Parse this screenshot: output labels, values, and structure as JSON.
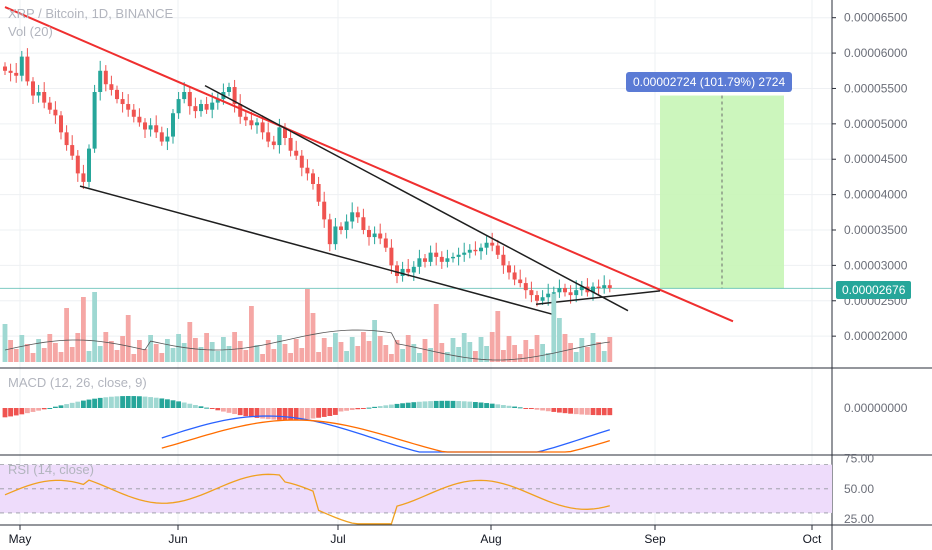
{
  "header": {
    "symbol": "XRP / Bitcoin, 1D, BINANCE",
    "volume_label": "Vol (20)"
  },
  "indicators": {
    "macd_label": "MACD (12, 26, close, 9)",
    "rsi_label": "RSI (14, close)"
  },
  "current_price_tag": "0.00002676",
  "measure_label": "0.00002724 (101.79%) 2724",
  "colors": {
    "bull": "#26a69a",
    "bear": "#ef5350",
    "bull_vol": "#9fd8d2",
    "bear_vol": "#f5a7a5",
    "trendline_red": "#ef2f2f",
    "trendline_black": "#1f1f1f",
    "measure_fill": "#c6f5b6",
    "rsi_band": "#eedcfb",
    "macd_line": "#2962ff",
    "signal_line": "#ff6d00",
    "rsi_line": "#f0a020"
  },
  "chart_data": [
    {
      "type": "candlestick",
      "yaxis_ticks": [
        "0.00006500",
        "0.00006000",
        "0.00005500",
        "0.00005000",
        "0.00004500",
        "0.00004000",
        "0.00003500",
        "0.00003000",
        "0.00002500",
        "0.00002000"
      ],
      "ylim": [
        1.55e-05,
        6.75e-05
      ],
      "xaxis_ticks": [
        "May",
        "Jun",
        "Jul",
        "Aug",
        "Sep",
        "Oct"
      ],
      "series_approx_close": [
        5.75e-05,
        5.72e-05,
        5.68e-05,
        5.95e-05,
        5.6e-05,
        5.4e-05,
        5.45e-05,
        5.3e-05,
        5.2e-05,
        5.12e-05,
        4.88e-05,
        4.7e-05,
        4.55e-05,
        4.3e-05,
        4.18e-05,
        4.65e-05,
        5.45e-05,
        5.75e-05,
        5.56e-05,
        5.48e-05,
        5.35e-05,
        5.28e-05,
        5.2e-05,
        5.1e-05,
        5.02e-05,
        4.92e-05,
        4.98e-05,
        4.88e-05,
        4.75e-05,
        4.82e-05,
        5.15e-05,
        5.35e-05,
        5.45e-05,
        5.25e-05,
        5.18e-05,
        5.28e-05,
        5.2e-05,
        5.3e-05,
        5.35e-05,
        5.45e-05,
        5.52e-05,
        5.28e-05,
        5.1e-05,
        5.05e-05,
        4.98e-05,
        5.02e-05,
        4.88e-05,
        4.75e-05,
        4.7e-05,
        4.95e-05,
        4.8e-05,
        4.62e-05,
        4.55e-05,
        4.38e-05,
        4.3e-05,
        4.15e-05,
        3.9e-05,
        3.65e-05,
        3.3e-05,
        3.55e-05,
        3.5e-05,
        3.62e-05,
        3.75e-05,
        3.68e-05,
        3.5e-05,
        3.4e-05,
        3.45e-05,
        3.38e-05,
        3.25e-05,
        3e-05,
        2.85e-05,
        2.95e-05,
        2.9e-05,
        2.98e-05,
        3.1e-05,
        3.05e-05,
        3.18e-05,
        3.12e-05,
        3.05e-05,
        3.1e-05,
        3.12e-05,
        3.15e-05,
        3.18e-05,
        3.22e-05,
        3.2e-05,
        3.25e-05,
        3.32e-05,
        3.28e-05,
        3.15e-05,
        3e-05,
        2.9e-05,
        2.8e-05,
        2.75e-05,
        2.65e-05,
        2.58e-05,
        2.5e-05,
        2.55e-05,
        2.6e-05,
        2.62e-05,
        2.68e-05,
        2.62e-05,
        2.58e-05,
        2.65e-05,
        2.7e-05,
        2.62e-05,
        2.7e-05,
        2.68e-05,
        2.72e-05,
        2.68e-05
      ],
      "price_label": "0.00002676"
    },
    {
      "type": "bar",
      "name": "volume",
      "title": "Vol (20)"
    },
    {
      "type": "line",
      "title": "MACD (12, 26, close, 9)",
      "yaxis_ticks": [
        "0.00000000"
      ]
    },
    {
      "type": "line",
      "title": "RSI (14, close)",
      "yaxis_ticks": [
        "75.00",
        "50.00",
        "25.00"
      ],
      "ylim": [
        20,
        78
      ],
      "rsi_band": [
        30,
        70
      ]
    }
  ]
}
